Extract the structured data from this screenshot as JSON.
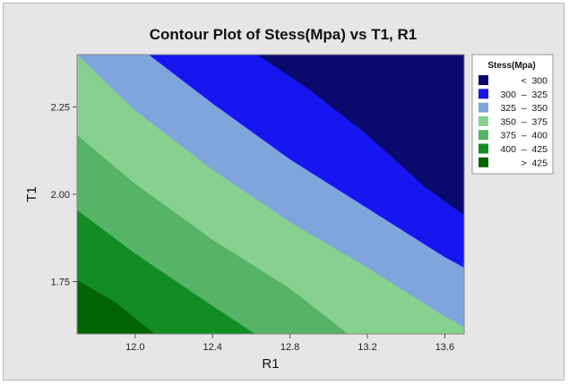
{
  "chart_data": {
    "type": "contour",
    "title": "Contour Plot of Stess(Mpa) vs T1, R1",
    "xlabel": "R1",
    "ylabel": "T1",
    "xlim": [
      11.7,
      13.7
    ],
    "ylim": [
      1.6,
      2.4
    ],
    "x_ticks": [
      12.0,
      12.4,
      12.8,
      13.2,
      13.6
    ],
    "x_tick_labels": [
      "12.0",
      "12.4",
      "12.8",
      "13.2",
      "13.6"
    ],
    "y_ticks": [
      1.75,
      2.0,
      2.25
    ],
    "y_tick_labels": [
      "1.75",
      "2.00",
      "2.25"
    ],
    "legend": {
      "title": "Stess(Mpa)",
      "placement": "right",
      "entries": [
        {
          "label": "<  300",
          "color": "#0a0a6e"
        },
        {
          "label": "300  –  325",
          "color": "#1616f0"
        },
        {
          "label": "325  –  350",
          "color": "#7fa6dc"
        },
        {
          "label": "350  –  375",
          "color": "#86d18f"
        },
        {
          "label": "375  –  400",
          "color": "#55b465"
        },
        {
          "label": "400  –  425",
          "color": "#118d24"
        },
        {
          "label": ">  425",
          "color": "#006400"
        }
      ]
    },
    "contour_levels": [
      {
        "level": 425,
        "points": [
          [
            11.7,
            1.755
          ],
          [
            11.9,
            1.69
          ],
          [
            12.1,
            1.6
          ]
        ]
      },
      {
        "level": 400,
        "points": [
          [
            11.7,
            1.955
          ],
          [
            12.0,
            1.83
          ],
          [
            12.4,
            1.68
          ],
          [
            12.62,
            1.6
          ]
        ]
      },
      {
        "level": 375,
        "points": [
          [
            11.7,
            2.17
          ],
          [
            12.0,
            2.03
          ],
          [
            12.4,
            1.87
          ],
          [
            12.8,
            1.73
          ],
          [
            13.1,
            1.6
          ]
        ]
      },
      {
        "level": 350,
        "points": [
          [
            11.7,
            2.4
          ],
          [
            12.0,
            2.24
          ],
          [
            12.4,
            2.07
          ],
          [
            12.8,
            1.92
          ],
          [
            13.2,
            1.79
          ],
          [
            13.6,
            1.65
          ],
          [
            13.7,
            1.62
          ]
        ]
      },
      {
        "level": 325,
        "points": [
          [
            12.07,
            2.4
          ],
          [
            12.4,
            2.26
          ],
          [
            12.8,
            2.1
          ],
          [
            13.2,
            1.96
          ],
          [
            13.6,
            1.82
          ],
          [
            13.7,
            1.79
          ]
        ]
      },
      {
        "level": 300,
        "points": [
          [
            12.63,
            2.4
          ],
          [
            12.9,
            2.3
          ],
          [
            13.2,
            2.17
          ],
          [
            13.5,
            2.02
          ],
          [
            13.7,
            1.94
          ]
        ]
      }
    ]
  }
}
